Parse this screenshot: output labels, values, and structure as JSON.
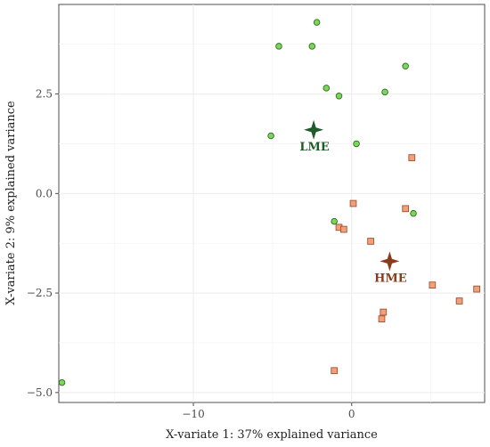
{
  "chart_data": {
    "type": "scatter",
    "title": "",
    "xlabel": "X-variate 1: 37% explained variance",
    "ylabel": "X-variate 2: 9% explained variance",
    "xlim": [
      -18.5,
      8.4
    ],
    "ylim": [
      -5.25,
      4.75
    ],
    "x_ticks": [
      -10,
      0
    ],
    "y_ticks": [
      -5.0,
      -2.5,
      0.0,
      2.5
    ],
    "x_tick_labels": [
      "−10",
      "0"
    ],
    "y_tick_labels": [
      "−5.0",
      "−2.5",
      "0.0",
      "2.5"
    ],
    "grid": true,
    "series": [
      {
        "name": "LME",
        "marker": "circle",
        "fill": "#7cd65a",
        "stroke": "#2e6b1f",
        "points": [
          [
            -2.2,
            4.3
          ],
          [
            -4.6,
            3.7
          ],
          [
            -2.5,
            3.7
          ],
          [
            3.4,
            3.2
          ],
          [
            -1.6,
            2.65
          ],
          [
            -0.8,
            2.45
          ],
          [
            2.1,
            2.55
          ],
          [
            -5.1,
            1.45
          ],
          [
            0.3,
            1.25
          ],
          [
            -1.1,
            -0.7
          ],
          [
            3.9,
            -0.5
          ],
          [
            -18.3,
            -4.75
          ]
        ]
      },
      {
        "name": "HME",
        "marker": "square",
        "fill": "#f2a07b",
        "stroke": "#a0522d",
        "points": [
          [
            3.8,
            0.9
          ],
          [
            0.1,
            -0.25
          ],
          [
            3.4,
            -0.38
          ],
          [
            -0.8,
            -0.85
          ],
          [
            -0.5,
            -0.9
          ],
          [
            1.2,
            -1.2
          ],
          [
            5.1,
            -2.3
          ],
          [
            7.9,
            -2.4
          ],
          [
            6.8,
            -2.7
          ],
          [
            2.0,
            -2.98
          ],
          [
            1.9,
            -3.15
          ],
          [
            -1.1,
            -4.45
          ]
        ]
      }
    ],
    "centroids": [
      {
        "label": "LME",
        "x": -2.4,
        "y": 1.6,
        "color": "#1f5a2a"
      },
      {
        "label": "HME",
        "x": 2.4,
        "y": -1.7,
        "color": "#8b3a1c"
      }
    ]
  }
}
